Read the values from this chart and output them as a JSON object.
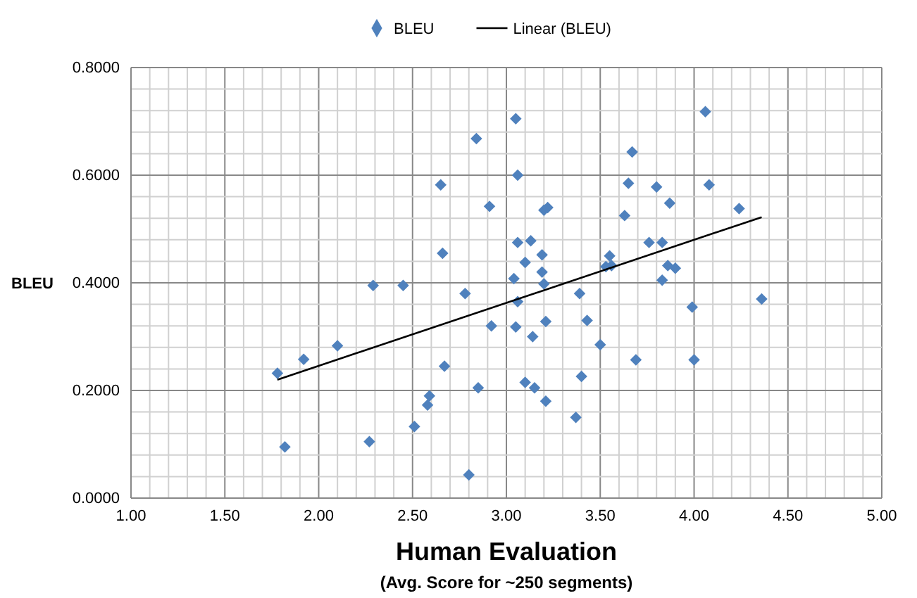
{
  "chart_data": {
    "type": "scatter",
    "xlabel": "Human Evaluation",
    "ylabel": "BLEU",
    "annotations": [
      "(Avg. Score for ~250 segments)"
    ],
    "grid": true,
    "legend": "top",
    "xlim": [
      1,
      5
    ],
    "ylim": [
      0,
      0.8
    ],
    "xticks": [
      {
        "value": 1.0,
        "label": "1.00"
      },
      {
        "value": 1.1,
        "label": null
      },
      {
        "value": 1.2,
        "label": null
      },
      {
        "value": 1.3,
        "label": null
      },
      {
        "value": 1.4,
        "label": null
      },
      {
        "value": 1.5,
        "label": "1.50"
      },
      {
        "value": 1.6,
        "label": null
      },
      {
        "value": 1.7,
        "label": null
      },
      {
        "value": 1.8,
        "label": null
      },
      {
        "value": 1.9,
        "label": null
      },
      {
        "value": 2.0,
        "label": "2.00"
      },
      {
        "value": 2.1,
        "label": null
      },
      {
        "value": 2.2,
        "label": null
      },
      {
        "value": 2.3,
        "label": null
      },
      {
        "value": 2.4,
        "label": null
      },
      {
        "value": 2.5,
        "label": "2.50"
      },
      {
        "value": 2.6,
        "label": null
      },
      {
        "value": 2.7,
        "label": null
      },
      {
        "value": 2.8,
        "label": null
      },
      {
        "value": 2.9,
        "label": null
      },
      {
        "value": 3.0,
        "label": "3.00"
      },
      {
        "value": 3.1,
        "label": null
      },
      {
        "value": 3.2,
        "label": null
      },
      {
        "value": 3.3,
        "label": null
      },
      {
        "value": 3.4,
        "label": null
      },
      {
        "value": 3.5,
        "label": "3.50"
      },
      {
        "value": 3.6,
        "label": null
      },
      {
        "value": 3.7,
        "label": null
      },
      {
        "value": 3.8,
        "label": null
      },
      {
        "value": 3.9,
        "label": null
      },
      {
        "value": 4.0,
        "label": "4.00"
      },
      {
        "value": 4.1,
        "label": null
      },
      {
        "value": 4.2,
        "label": null
      },
      {
        "value": 4.3,
        "label": null
      },
      {
        "value": 4.4,
        "label": null
      },
      {
        "value": 4.5,
        "label": "4.50"
      },
      {
        "value": 4.6,
        "label": null
      },
      {
        "value": 4.7,
        "label": null
      },
      {
        "value": 4.8,
        "label": null
      },
      {
        "value": 4.9,
        "label": null
      },
      {
        "value": 5.0,
        "label": "5.00"
      }
    ],
    "yticks": [
      {
        "value": 0,
        "label": "0.0000"
      },
      {
        "value": 0.04,
        "label": null
      },
      {
        "value": 0.08,
        "label": null
      },
      {
        "value": 0.12,
        "label": null
      },
      {
        "value": 0.16,
        "label": null
      },
      {
        "value": 0.2,
        "label": "0.2000"
      },
      {
        "value": 0.24,
        "label": null
      },
      {
        "value": 0.28,
        "label": null
      },
      {
        "value": 0.32,
        "label": null
      },
      {
        "value": 0.36,
        "label": null
      },
      {
        "value": 0.4,
        "label": "0.4000"
      },
      {
        "value": 0.44,
        "label": null
      },
      {
        "value": 0.48,
        "label": null
      },
      {
        "value": 0.52,
        "label": null
      },
      {
        "value": 0.56,
        "label": null
      },
      {
        "value": 0.6,
        "label": "0.6000"
      },
      {
        "value": 0.64,
        "label": null
      },
      {
        "value": 0.68,
        "label": null
      },
      {
        "value": 0.72,
        "label": null
      },
      {
        "value": 0.76,
        "label": null
      },
      {
        "value": 0.8,
        "label": "0.8000"
      }
    ],
    "series": [
      {
        "name": "BLEU",
        "type": "scatter",
        "marker": "diamond",
        "color": "#4f81bd",
        "x": [
          1.78,
          1.82,
          1.92,
          2.1,
          2.27,
          2.29,
          2.45,
          2.51,
          2.58,
          2.59,
          2.65,
          2.66,
          2.67,
          2.78,
          2.8,
          2.84,
          2.85,
          2.91,
          2.92,
          3.04,
          3.05,
          3.05,
          3.06,
          3.06,
          3.06,
          3.1,
          3.1,
          3.13,
          3.14,
          3.15,
          3.19,
          3.19,
          3.2,
          3.2,
          3.21,
          3.21,
          3.22,
          3.37,
          3.39,
          3.4,
          3.43,
          3.5,
          3.53,
          3.55,
          3.56,
          3.63,
          3.65,
          3.67,
          3.69,
          3.76,
          3.8,
          3.83,
          3.83,
          3.86,
          3.87,
          3.9,
          3.99,
          4.0,
          4.06,
          4.08,
          4.24,
          4.36
        ],
        "values": [
          0.232,
          0.095,
          0.258,
          0.283,
          0.105,
          0.395,
          0.395,
          0.133,
          0.173,
          0.19,
          0.582,
          0.455,
          0.245,
          0.38,
          0.043,
          0.668,
          0.205,
          0.542,
          0.32,
          0.408,
          0.705,
          0.318,
          0.6,
          0.475,
          0.365,
          0.438,
          0.215,
          0.478,
          0.3,
          0.205,
          0.452,
          0.42,
          0.535,
          0.398,
          0.328,
          0.18,
          0.54,
          0.15,
          0.38,
          0.226,
          0.33,
          0.285,
          0.43,
          0.45,
          0.432,
          0.525,
          0.585,
          0.643,
          0.257,
          0.475,
          0.578,
          0.405,
          0.475,
          0.432,
          0.548,
          0.427,
          0.355,
          0.257,
          0.718,
          0.582,
          0.538,
          0.37
        ]
      },
      {
        "name": "Linear (BLEU)",
        "type": "line",
        "marker": "none",
        "line_style": "solid",
        "color": "#000000",
        "x": [
          1.78,
          4.36
        ],
        "values": [
          0.22,
          0.522
        ]
      }
    ]
  }
}
